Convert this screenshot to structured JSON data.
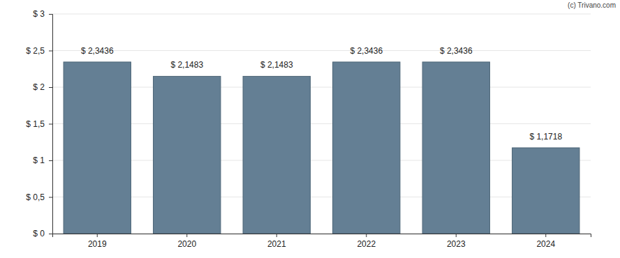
{
  "chart_data": {
    "type": "bar",
    "annotations": [
      "(c) Trivano.com"
    ],
    "categories": [
      "2019",
      "2020",
      "2021",
      "2022",
      "2023",
      "2024"
    ],
    "values": [
      2.3436,
      2.1483,
      2.1483,
      2.3436,
      2.3436,
      1.1718
    ],
    "value_labels": [
      "$ 2,3436",
      "$ 2,1483",
      "$ 2,1483",
      "$ 2,3436",
      "$ 2,3436",
      "$ 1,1718"
    ],
    "data_labels": true,
    "color": "#647f94",
    "ylim": [
      0,
      3
    ],
    "yticks": [
      {
        "value": 0,
        "label": "$ 0"
      },
      {
        "value": 0.5,
        "label": "$ 0,5"
      },
      {
        "value": 1,
        "label": "$ 1"
      },
      {
        "value": 1.5,
        "label": "$ 1,5"
      },
      {
        "value": 2,
        "label": "$ 2"
      },
      {
        "value": 2.5,
        "label": "$ 2,5"
      },
      {
        "value": 3,
        "label": "$ 3"
      }
    ],
    "grid": true
  }
}
